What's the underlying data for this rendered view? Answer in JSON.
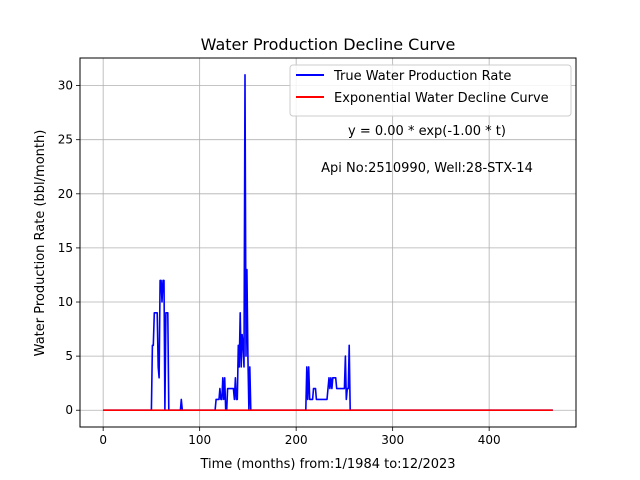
{
  "chart_data": {
    "type": "line",
    "title": "Water Production Decline Curve",
    "xlabel": "Time (months) from:1/1984 to:12/2023",
    "ylabel": "Water Production Rate (bbl/month)",
    "xlim": [
      -24,
      490
    ],
    "ylim": [
      -1.55,
      32.55
    ],
    "xticks": [
      0,
      100,
      200,
      300,
      400
    ],
    "yticks": [
      0,
      5,
      10,
      15,
      20,
      25,
      30
    ],
    "grid": true,
    "legend_position": "top-right",
    "annotations": [
      {
        "text": "y = 0.00 * exp(-1.00 * t)"
      },
      {
        "text": "Api No:2510990, Well:28-STX-14"
      }
    ],
    "series": [
      {
        "name": "True Water Production Rate",
        "color": "#0000ff",
        "points": [
          [
            0,
            0
          ],
          [
            50,
            0
          ],
          [
            51,
            6
          ],
          [
            52,
            6
          ],
          [
            53,
            9
          ],
          [
            54,
            9
          ],
          [
            55,
            9
          ],
          [
            56,
            9
          ],
          [
            57,
            4
          ],
          [
            58,
            3
          ],
          [
            59,
            12
          ],
          [
            60,
            12
          ],
          [
            61,
            10
          ],
          [
            62,
            12
          ],
          [
            63,
            12
          ],
          [
            64,
            0
          ],
          [
            65,
            9
          ],
          [
            66,
            9
          ],
          [
            67,
            9
          ],
          [
            68,
            0
          ],
          [
            80,
            0
          ],
          [
            81,
            1
          ],
          [
            82,
            0
          ],
          [
            116,
            0
          ],
          [
            117,
            1
          ],
          [
            118,
            1
          ],
          [
            119,
            1
          ],
          [
            120,
            1
          ],
          [
            121,
            2
          ],
          [
            122,
            1
          ],
          [
            123,
            1
          ],
          [
            124,
            3
          ],
          [
            125,
            1
          ],
          [
            126,
            3
          ],
          [
            127,
            0
          ],
          [
            128,
            0
          ],
          [
            129,
            2
          ],
          [
            130,
            2
          ],
          [
            131,
            2
          ],
          [
            132,
            2
          ],
          [
            133,
            2
          ],
          [
            134,
            2
          ],
          [
            135,
            2
          ],
          [
            136,
            1
          ],
          [
            137,
            3
          ],
          [
            138,
            1
          ],
          [
            139,
            1
          ],
          [
            140,
            6
          ],
          [
            141,
            4
          ],
          [
            142,
            9
          ],
          [
            143,
            4
          ],
          [
            144,
            7
          ],
          [
            145,
            6
          ],
          [
            146,
            4
          ],
          [
            147,
            31
          ],
          [
            148,
            5
          ],
          [
            149,
            13
          ],
          [
            150,
            5
          ],
          [
            151,
            0
          ],
          [
            152,
            4
          ],
          [
            153,
            0
          ],
          [
            210,
            0
          ],
          [
            211,
            4
          ],
          [
            212,
            1
          ],
          [
            213,
            4
          ],
          [
            214,
            1
          ],
          [
            215,
            1
          ],
          [
            216,
            1
          ],
          [
            217,
            1
          ],
          [
            218,
            2
          ],
          [
            219,
            2
          ],
          [
            220,
            2
          ],
          [
            221,
            1
          ],
          [
            222,
            1
          ],
          [
            223,
            1
          ],
          [
            224,
            1
          ],
          [
            225,
            1
          ],
          [
            226,
            1
          ],
          [
            227,
            1
          ],
          [
            228,
            1
          ],
          [
            229,
            1
          ],
          [
            230,
            1
          ],
          [
            231,
            1
          ],
          [
            232,
            1
          ],
          [
            233,
            2
          ],
          [
            234,
            3
          ],
          [
            235,
            2
          ],
          [
            236,
            3
          ],
          [
            237,
            2
          ],
          [
            238,
            3
          ],
          [
            239,
            3
          ],
          [
            240,
            3
          ],
          [
            241,
            3
          ],
          [
            242,
            2
          ],
          [
            243,
            2
          ],
          [
            244,
            2
          ],
          [
            245,
            2
          ],
          [
            246,
            2
          ],
          [
            247,
            2
          ],
          [
            248,
            2
          ],
          [
            249,
            2
          ],
          [
            250,
            2
          ],
          [
            251,
            5
          ],
          [
            252,
            1
          ],
          [
            253,
            2
          ],
          [
            254,
            2
          ],
          [
            255,
            6
          ],
          [
            256,
            0
          ],
          [
            466,
            0
          ]
        ]
      },
      {
        "name": "Exponential Water Decline Curve",
        "color": "#ff0000",
        "points": [
          [
            0,
            0
          ],
          [
            466,
            0
          ]
        ]
      }
    ]
  }
}
